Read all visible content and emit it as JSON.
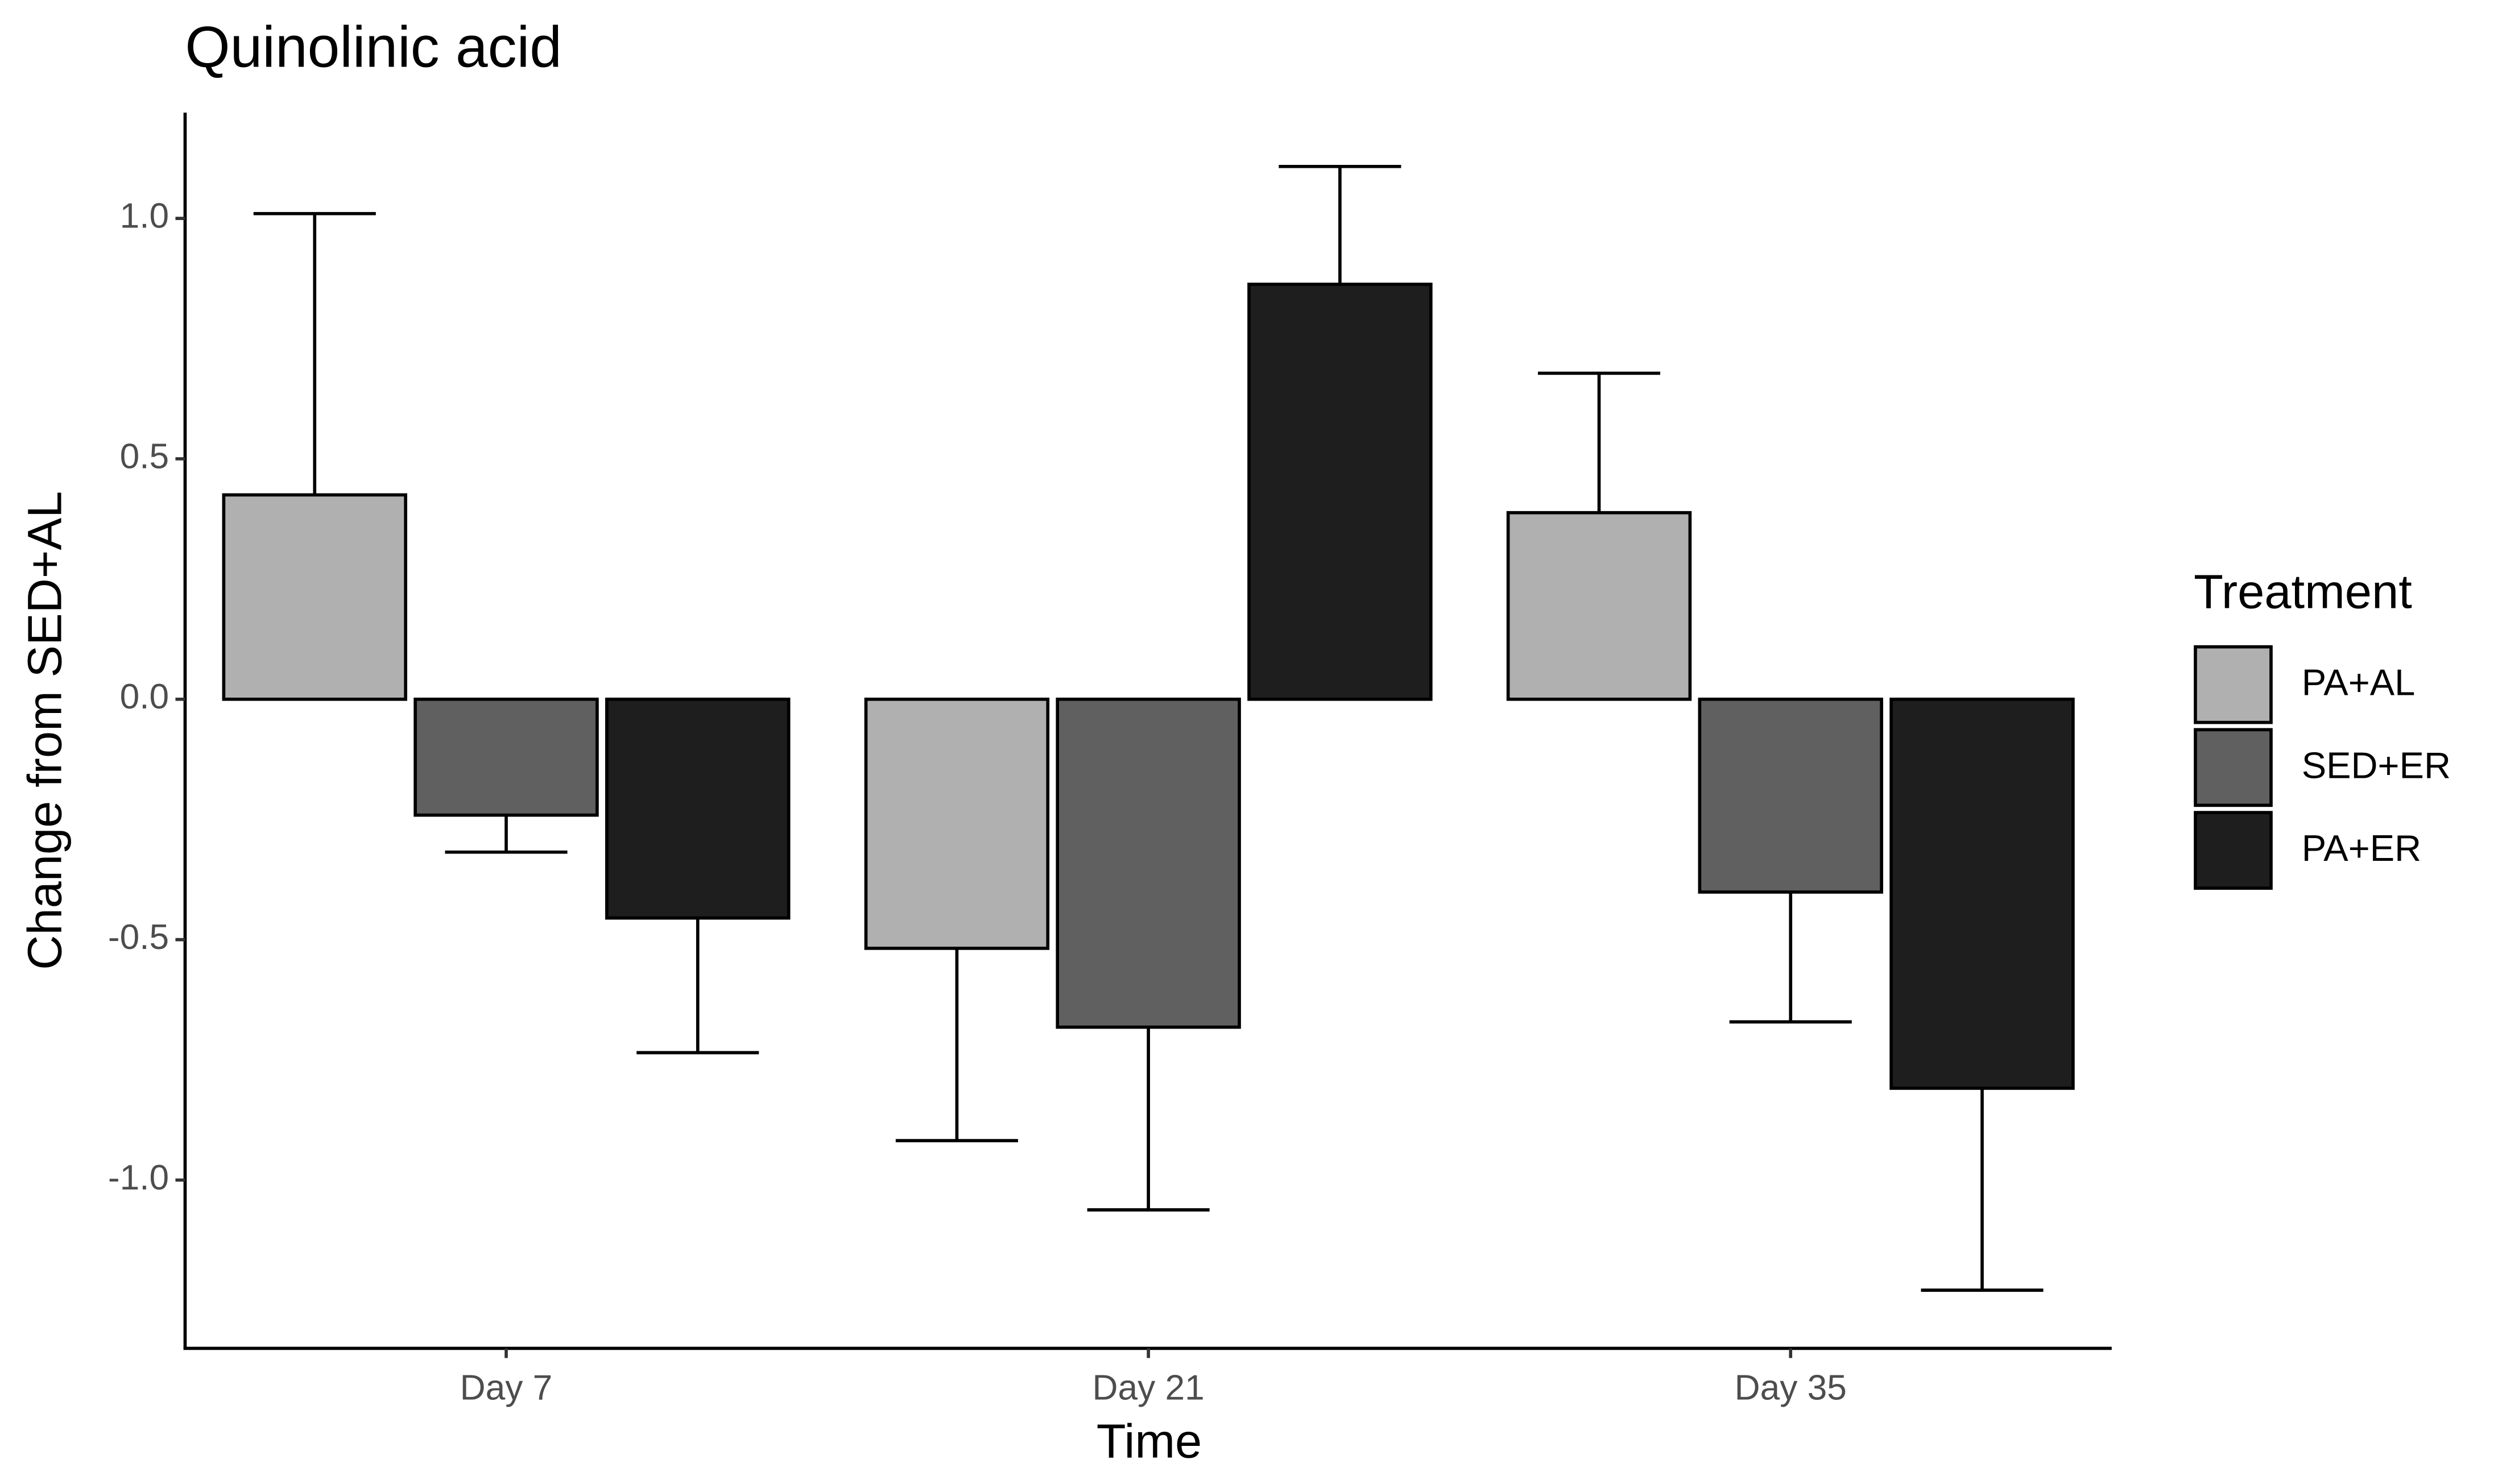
{
  "chart_data": {
    "type": "bar",
    "title": "Quinolinic acid",
    "x_label": "Time",
    "y_label": "Change from SED+AL",
    "legend_title": "Treatment",
    "categories": [
      "Day 7",
      "Day 21",
      "Day 35"
    ],
    "series": [
      {
        "name": "PA+AL",
        "color": "#b0b0b0",
        "values": [
          0.425,
          -0.518,
          0.388
        ],
        "errors": [
          0.585,
          0.4,
          0.29
        ]
      },
      {
        "name": "SED+ER",
        "color": "#606060",
        "values": [
          -0.241,
          -0.682,
          -0.401
        ],
        "errors": [
          0.077,
          0.38,
          0.27
        ]
      },
      {
        "name": "PA+ER",
        "color": "#1e1e1e",
        "values": [
          -0.455,
          0.863,
          -0.809
        ],
        "errors": [
          0.28,
          0.245,
          0.42
        ]
      }
    ],
    "ylim": [
      -1.35,
      1.22
    ],
    "yticks": [
      {
        "value": -1,
        "label": "-1.0"
      },
      -0.5,
      {
        "value": 0,
        "label": "0.0"
      },
      0.5,
      {
        "value": 1,
        "label": "1.0"
      }
    ],
    "legend": "right"
  }
}
